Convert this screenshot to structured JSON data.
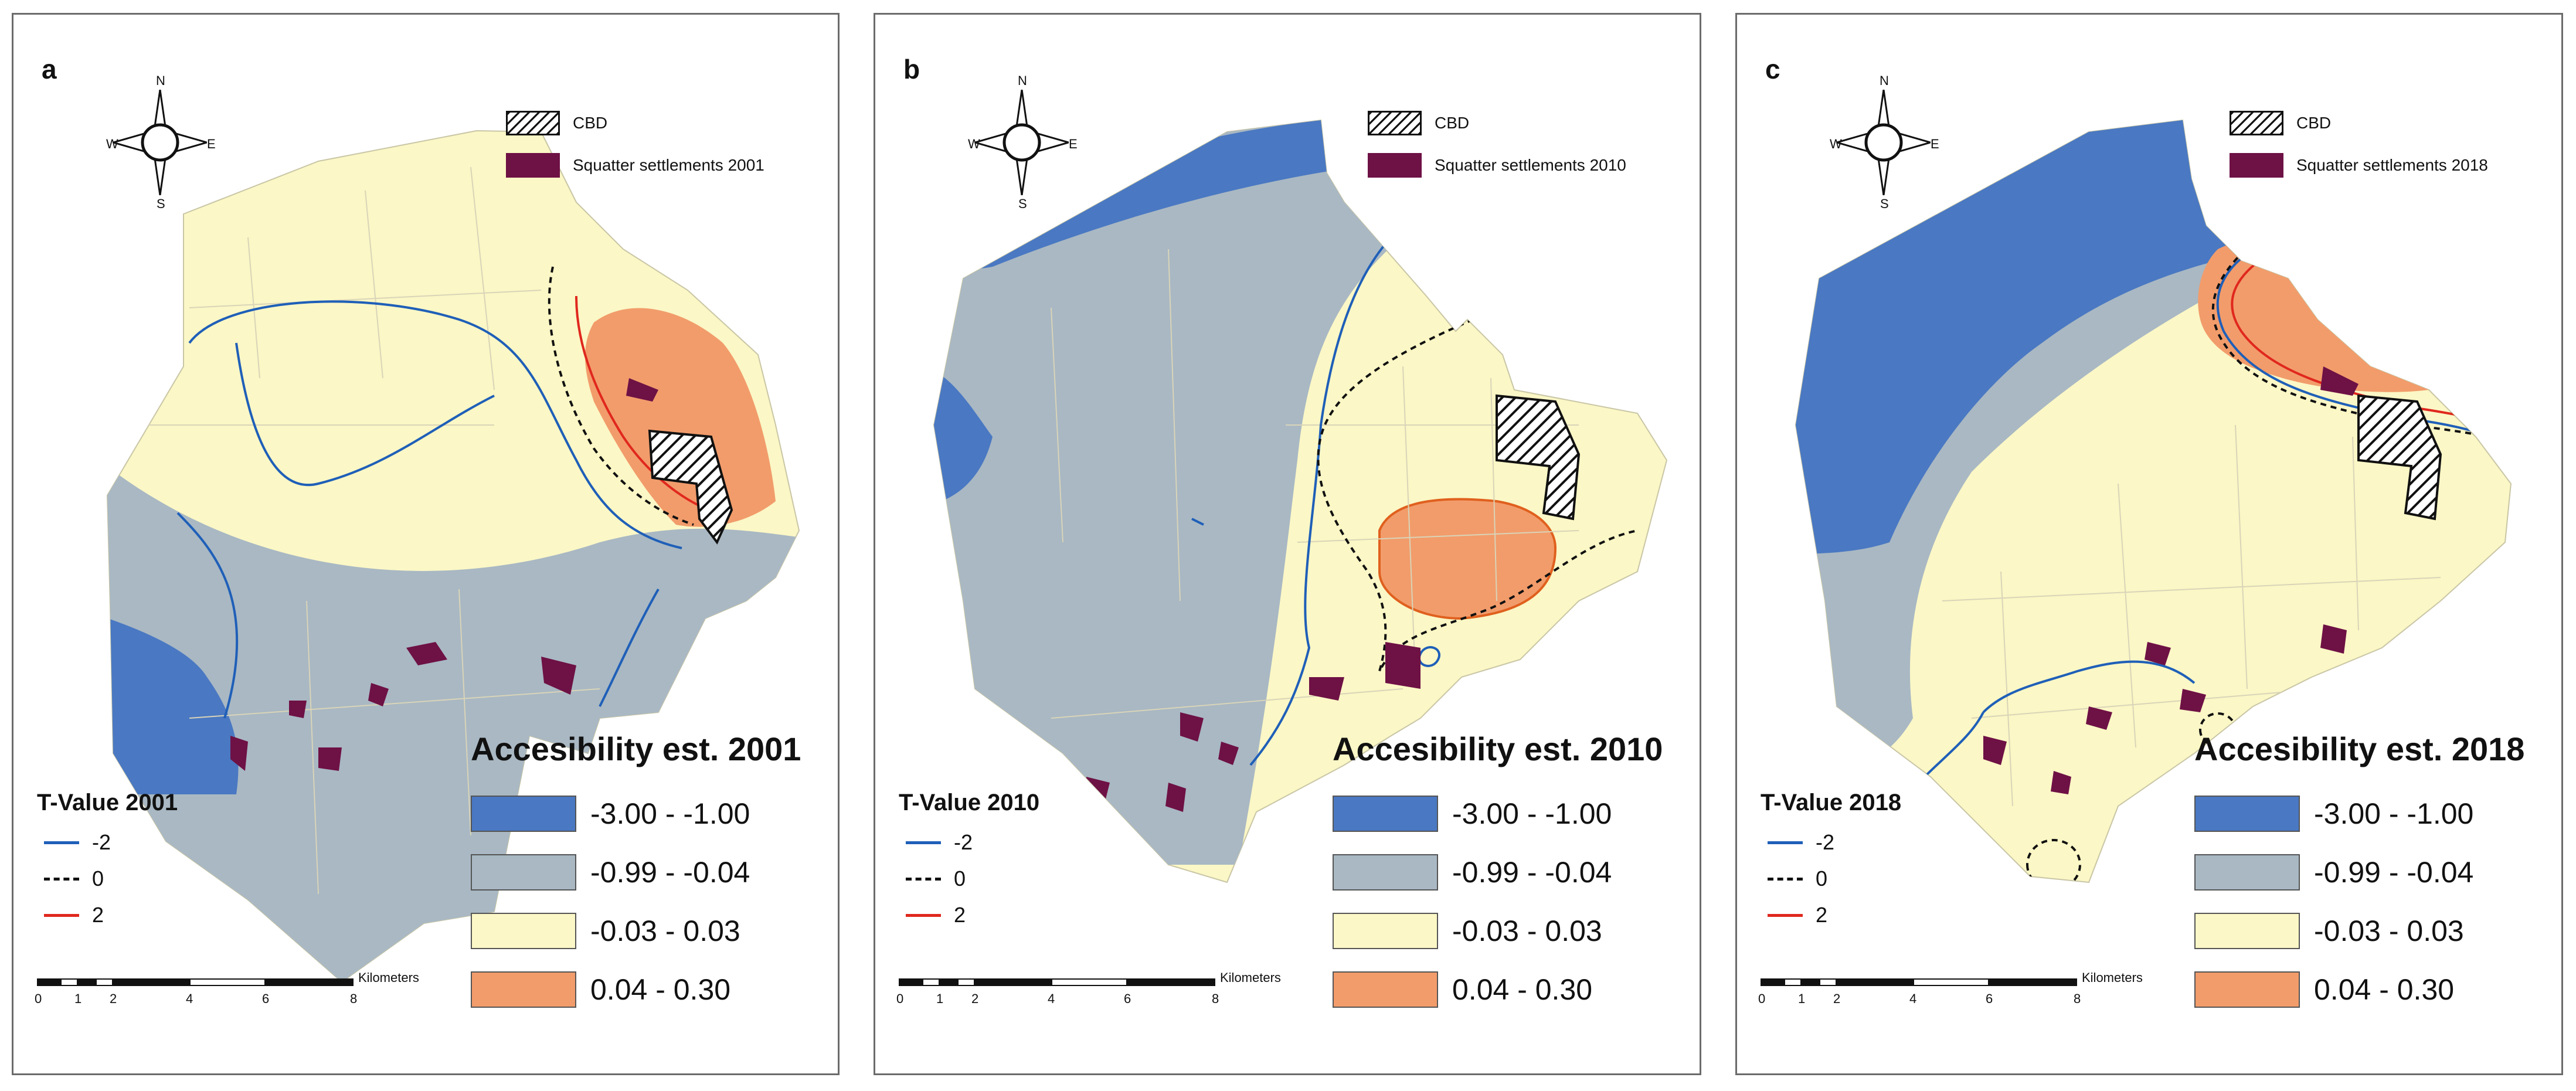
{
  "legend_common": {
    "cbd": "CBD",
    "tvalue_levels": [
      "-2",
      "0",
      "2"
    ],
    "accessibility_classes": [
      "-3.00 - -1.00",
      "-0.99 - -0.04",
      "-0.03 - 0.03",
      "0.04 - 0.30"
    ],
    "class_colors": [
      "#4a78c2",
      "#a9b8c3",
      "#fbf7c6",
      "#f29c6b"
    ],
    "squatter_color": "#6e1145",
    "tvalue_colors": [
      "#1f5fb8",
      "#111111",
      "#e0281e"
    ]
  },
  "compass": {
    "n": "N",
    "s": "S",
    "e": "E",
    "w": "W"
  },
  "scale_bar": {
    "unit": "Kilometers",
    "ticks": [
      "0",
      "1",
      "2",
      "4",
      "6",
      "8"
    ]
  },
  "panels": [
    {
      "label": "a",
      "squatter": "Squatter settlements 2001",
      "tvalue_title": "T-Value 2001",
      "accessibility_title": "Accesibility est. 2001"
    },
    {
      "label": "b",
      "squatter": "Squatter settlements 2010",
      "tvalue_title": "T-Value 2010",
      "accessibility_title": "Accesibility est. 2010"
    },
    {
      "label": "c",
      "squatter": "Squatter settlements 2018",
      "tvalue_title": "T-Value 2018",
      "accessibility_title": "Accesibility est. 2018"
    }
  ]
}
